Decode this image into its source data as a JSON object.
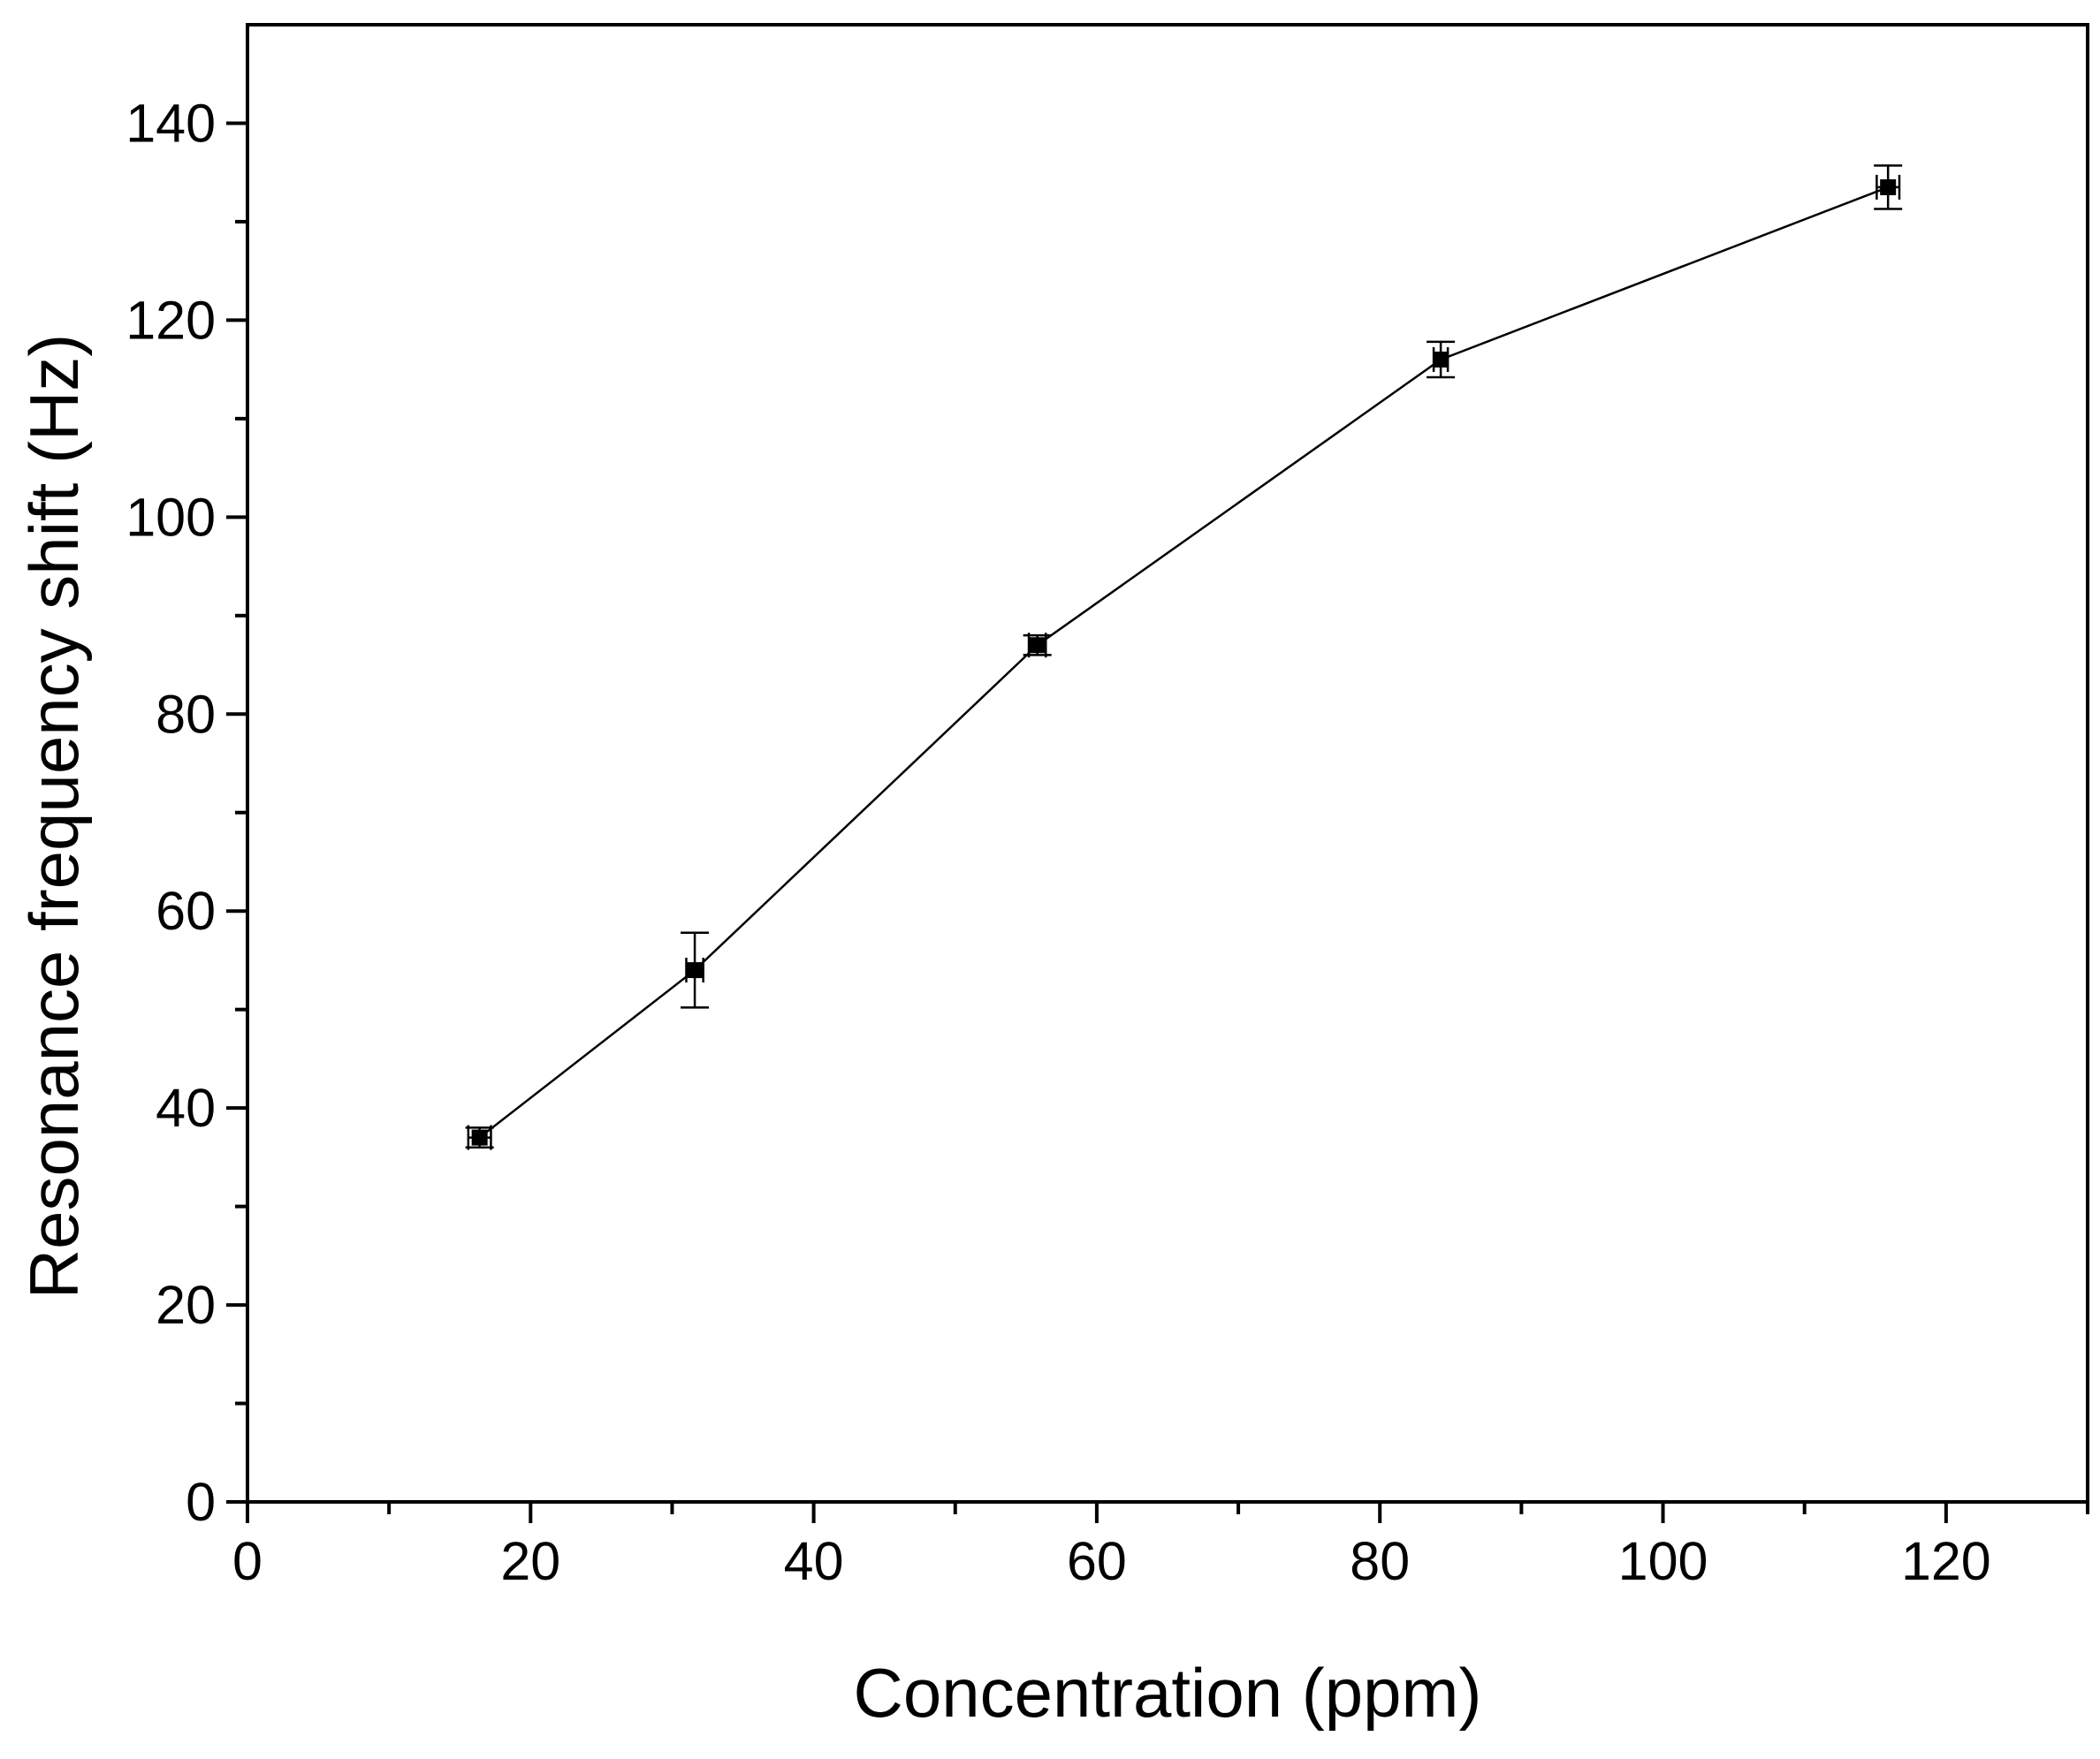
{
  "chart_data": {
    "type": "line",
    "title": "",
    "xlabel": "Concentration (ppm)",
    "ylabel": "Resonance frequency shift (Hz)",
    "xlim": [
      0,
      130
    ],
    "ylim": [
      0,
      150
    ],
    "x_ticks": [
      0,
      20,
      40,
      60,
      80,
      100,
      120
    ],
    "x_tick_labels": [
      "0",
      "20",
      "40",
      "60",
      "80",
      "100",
      "120"
    ],
    "y_ticks": [
      0,
      20,
      40,
      60,
      80,
      100,
      120,
      140
    ],
    "y_tick_labels": [
      "0",
      "20",
      "40",
      "60",
      "80",
      "100",
      "120",
      "140"
    ],
    "grid": false,
    "legend": "none",
    "series": [
      {
        "color": "#000000",
        "marker": "square",
        "x": [
          16.4,
          31.6,
          55.8,
          84.3,
          115.9
        ],
        "y": [
          37.0,
          54.0,
          87.0,
          116.0,
          133.5
        ],
        "x_err": [
          0.8,
          0.6,
          0.6,
          0.5,
          0.8
        ],
        "y_err": [
          1.0,
          3.8,
          1.0,
          1.8,
          2.2
        ]
      }
    ]
  }
}
